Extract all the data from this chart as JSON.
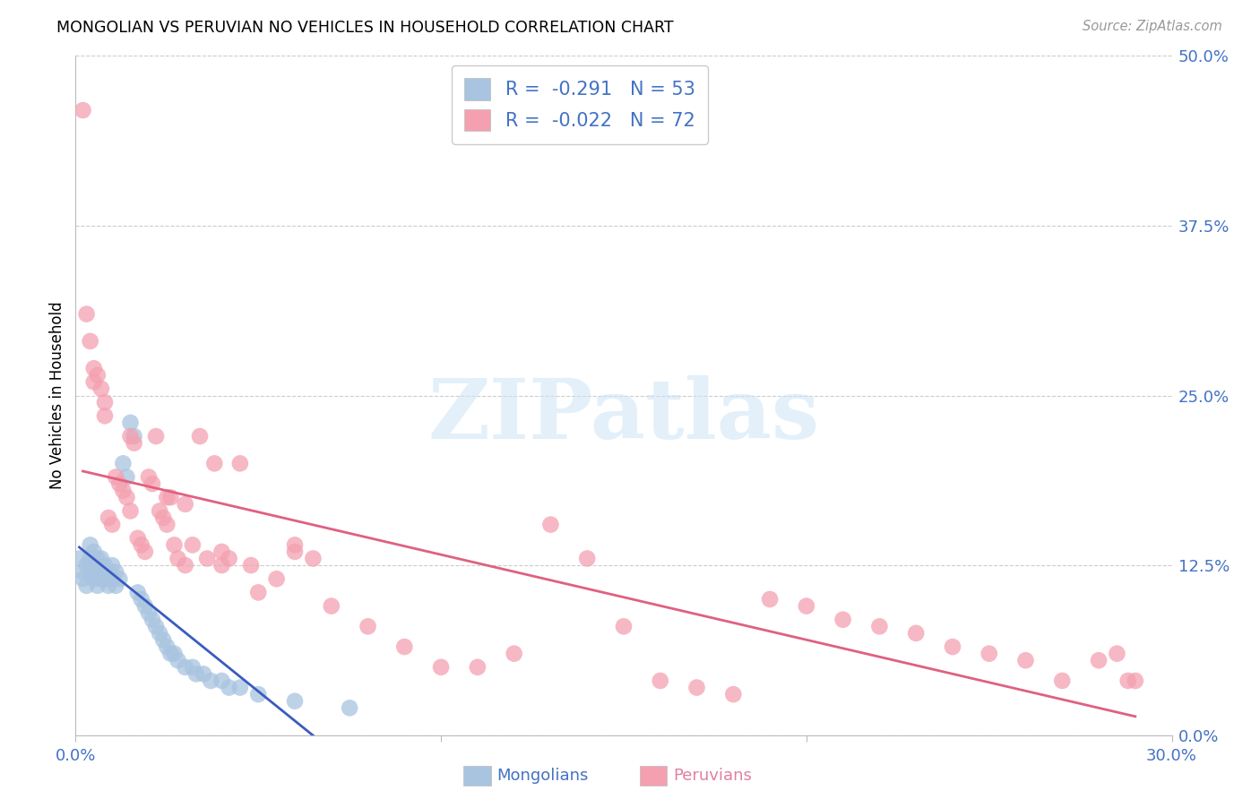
{
  "title": "MONGOLIAN VS PERUVIAN NO VEHICLES IN HOUSEHOLD CORRELATION CHART",
  "source": "Source: ZipAtlas.com",
  "ylabel": "No Vehicles in Household",
  "xmin": 0.0,
  "xmax": 0.3,
  "ymin": 0.0,
  "ymax": 0.5,
  "yticks": [
    0.0,
    0.125,
    0.25,
    0.375,
    0.5
  ],
  "ytick_labels": [
    "0.0%",
    "12.5%",
    "25.0%",
    "37.5%",
    "50.0%"
  ],
  "xticks": [
    0.0,
    0.1,
    0.2,
    0.3
  ],
  "xtick_labels_show": [
    "0.0%",
    "30.0%"
  ],
  "r_mongolian": -0.291,
  "n_mongolian": 53,
  "r_peruvian": -0.022,
  "n_peruvian": 72,
  "mongolian_color": "#a8c4e0",
  "peruvian_color": "#f4a0b0",
  "trend_mongolian_color": "#3a5bbf",
  "trend_peruvian_color": "#e06080",
  "tick_color": "#4472c4",
  "legend_text_color": "#4472c4",
  "background_color": "#ffffff",
  "watermark_text": "ZIPatlas",
  "watermark_color": "#cde4f5",
  "mongolians_x": [
    0.001,
    0.002,
    0.002,
    0.003,
    0.003,
    0.004,
    0.004,
    0.004,
    0.005,
    0.005,
    0.005,
    0.006,
    0.006,
    0.006,
    0.007,
    0.007,
    0.007,
    0.008,
    0.008,
    0.009,
    0.009,
    0.01,
    0.01,
    0.011,
    0.011,
    0.012,
    0.013,
    0.014,
    0.015,
    0.016,
    0.017,
    0.018,
    0.019,
    0.02,
    0.021,
    0.022,
    0.023,
    0.024,
    0.025,
    0.026,
    0.027,
    0.028,
    0.03,
    0.032,
    0.033,
    0.035,
    0.037,
    0.04,
    0.042,
    0.045,
    0.05,
    0.06,
    0.075
  ],
  "mongolians_y": [
    0.13,
    0.12,
    0.115,
    0.125,
    0.11,
    0.14,
    0.13,
    0.12,
    0.135,
    0.125,
    0.115,
    0.13,
    0.12,
    0.11,
    0.13,
    0.12,
    0.115,
    0.125,
    0.115,
    0.12,
    0.11,
    0.125,
    0.115,
    0.12,
    0.11,
    0.115,
    0.2,
    0.19,
    0.23,
    0.22,
    0.105,
    0.1,
    0.095,
    0.09,
    0.085,
    0.08,
    0.075,
    0.07,
    0.065,
    0.06,
    0.06,
    0.055,
    0.05,
    0.05,
    0.045,
    0.045,
    0.04,
    0.04,
    0.035,
    0.035,
    0.03,
    0.025,
    0.02
  ],
  "peruvians_x": [
    0.002,
    0.003,
    0.004,
    0.005,
    0.005,
    0.006,
    0.007,
    0.008,
    0.008,
    0.009,
    0.01,
    0.011,
    0.012,
    0.013,
    0.014,
    0.015,
    0.015,
    0.016,
    0.017,
    0.018,
    0.019,
    0.02,
    0.021,
    0.022,
    0.023,
    0.024,
    0.025,
    0.026,
    0.027,
    0.028,
    0.03,
    0.032,
    0.034,
    0.036,
    0.038,
    0.04,
    0.042,
    0.045,
    0.048,
    0.05,
    0.055,
    0.06,
    0.065,
    0.07,
    0.08,
    0.09,
    0.1,
    0.11,
    0.12,
    0.13,
    0.14,
    0.15,
    0.16,
    0.17,
    0.18,
    0.19,
    0.2,
    0.21,
    0.22,
    0.23,
    0.24,
    0.25,
    0.26,
    0.27,
    0.28,
    0.285,
    0.288,
    0.025,
    0.03,
    0.04,
    0.06,
    0.29
  ],
  "peruvians_y": [
    0.46,
    0.31,
    0.29,
    0.27,
    0.26,
    0.265,
    0.255,
    0.245,
    0.235,
    0.16,
    0.155,
    0.19,
    0.185,
    0.18,
    0.175,
    0.165,
    0.22,
    0.215,
    0.145,
    0.14,
    0.135,
    0.19,
    0.185,
    0.22,
    0.165,
    0.16,
    0.155,
    0.175,
    0.14,
    0.13,
    0.125,
    0.14,
    0.22,
    0.13,
    0.2,
    0.125,
    0.13,
    0.2,
    0.125,
    0.105,
    0.115,
    0.14,
    0.13,
    0.095,
    0.08,
    0.065,
    0.05,
    0.05,
    0.06,
    0.155,
    0.13,
    0.08,
    0.04,
    0.035,
    0.03,
    0.1,
    0.095,
    0.085,
    0.08,
    0.075,
    0.065,
    0.06,
    0.055,
    0.04,
    0.055,
    0.06,
    0.04,
    0.175,
    0.17,
    0.135,
    0.135,
    0.04
  ]
}
